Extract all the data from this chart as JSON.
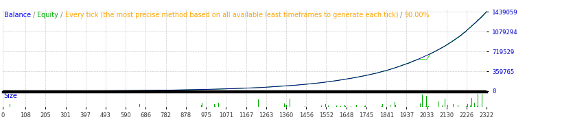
{
  "title_parts": [
    {
      "text": "Balance",
      "color": "#0000FF"
    },
    {
      "text": " / ",
      "color": "#808080"
    },
    {
      "text": "Equity",
      "color": "#00AA00"
    },
    {
      "text": " / ",
      "color": "#808080"
    },
    {
      "text": "Every tick (the most precise method based on all available least timeframes to generate each tick)",
      "color": "#FFA500"
    },
    {
      "text": " / ",
      "color": "#808080"
    },
    {
      "text": "90.00%",
      "color": "#FFA500"
    }
  ],
  "background_color": "#FFFFFF",
  "plot_bg_color": "#FFFFFF",
  "grid_color": "#CCCCCC",
  "balance_color": "#00008B",
  "equity_color": "#00CC00",
  "size_bar_color": "#00AA00",
  "y_ticks": [
    0,
    359765,
    719529,
    1079294,
    1439059
  ],
  "y_labels": [
    "0",
    "359765",
    "719529",
    "1079294",
    "1439059"
  ],
  "x_ticks": [
    0,
    108,
    205,
    301,
    397,
    493,
    590,
    686,
    782,
    878,
    975,
    1071,
    1167,
    1263,
    1360,
    1456,
    1552,
    1648,
    1745,
    1841,
    1937,
    2033,
    2130,
    2226,
    2322
  ],
  "x_max": 2322,
  "y_max": 1439059,
  "size_label": "Size",
  "border_color": "#000000",
  "title_fontsize": 7.0,
  "y_label_fontsize": 6.5,
  "x_label_fontsize": 6.0
}
